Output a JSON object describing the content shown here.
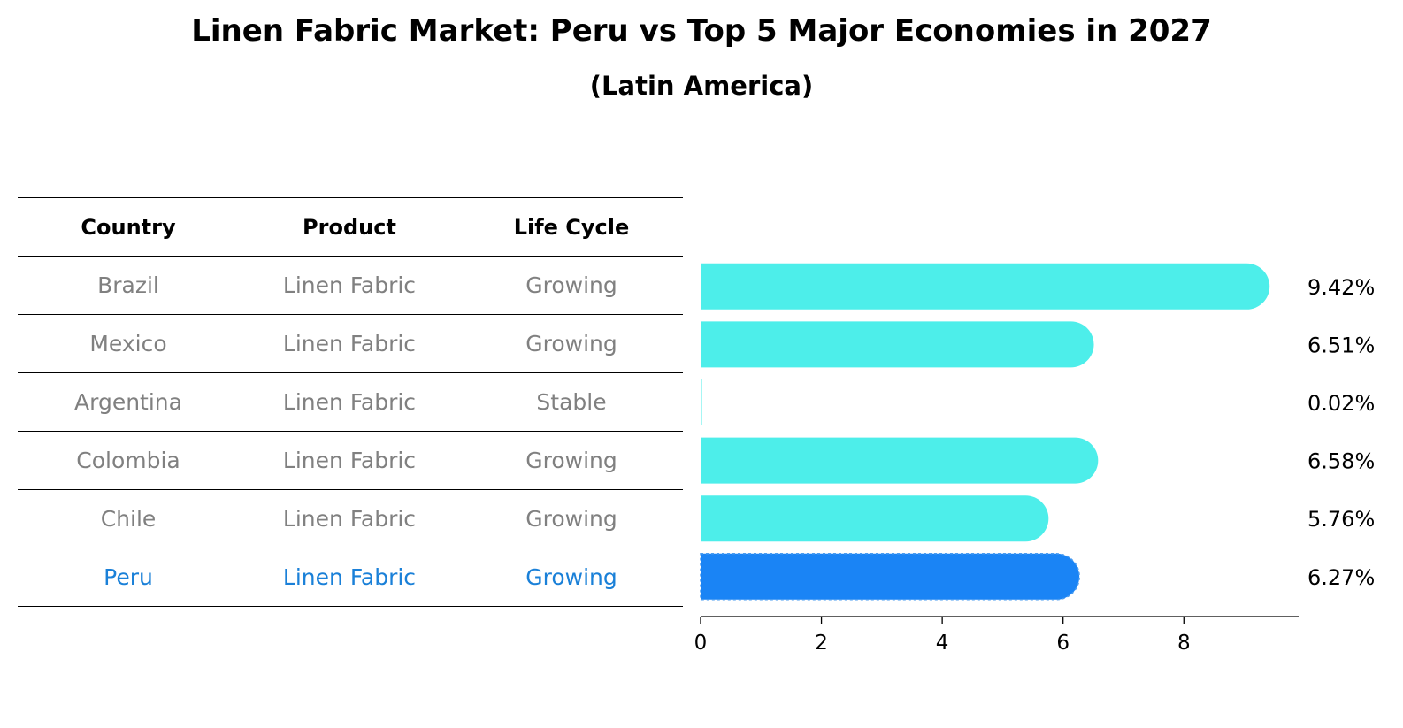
{
  "title": "Linen Fabric Market: Peru vs Top 5 Major Economies in 2027",
  "subtitle": "(Latin America)",
  "table": {
    "headers": [
      "Country",
      "Product",
      "Life Cycle"
    ],
    "rows": [
      {
        "country": "Brazil",
        "product": "Linen Fabric",
        "life_cycle": "Growing"
      },
      {
        "country": "Mexico",
        "product": "Linen Fabric",
        "life_cycle": "Growing"
      },
      {
        "country": "Argentina",
        "product": "Linen Fabric",
        "life_cycle": "Stable"
      },
      {
        "country": "Colombia",
        "product": "Linen Fabric",
        "life_cycle": "Growing"
      },
      {
        "country": "Chile",
        "product": "Linen Fabric",
        "life_cycle": "Growing"
      },
      {
        "country": "Peru",
        "product": "Linen Fabric",
        "life_cycle": "Growing"
      }
    ]
  },
  "chart_data": {
    "type": "bar",
    "orientation": "horizontal",
    "categories": [
      "Brazil",
      "Mexico",
      "Argentina",
      "Colombia",
      "Chile",
      "Peru"
    ],
    "values": [
      9.42,
      6.51,
      0.02,
      6.58,
      5.76,
      6.27
    ],
    "value_labels": [
      "9.42%",
      "6.51%",
      "0.02%",
      "6.58%",
      "5.76%",
      "6.27%"
    ],
    "xlim": [
      0,
      9.9
    ],
    "xticks": [
      0,
      2,
      4,
      6,
      8
    ],
    "highlight_category": "Peru",
    "colors": {
      "default": "#4deeea",
      "highlight": "#1a84f5"
    },
    "grid": false
  }
}
